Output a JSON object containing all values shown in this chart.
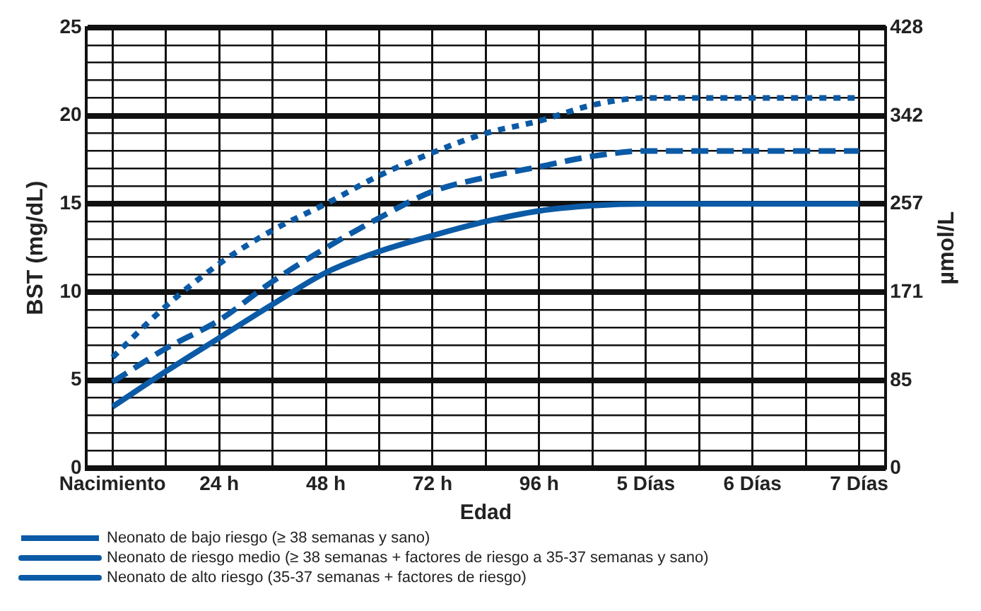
{
  "chart_data": {
    "type": "line",
    "xlabel": "Edad",
    "ylabel": "BST (mg/dL)",
    "y2label": "µmol/L",
    "categories": [
      "Nacimiento",
      null,
      "24 h",
      null,
      "48 h",
      null,
      "72 h",
      null,
      "96 h",
      null,
      "5 Días",
      null,
      "6 Días",
      null,
      "7 Días"
    ],
    "ylim": [
      0,
      25
    ],
    "yticks": [
      0,
      {
        "value": 1,
        "label": null
      },
      {
        "value": 2,
        "label": null
      },
      {
        "value": 3,
        "label": null
      },
      {
        "value": 4,
        "label": null
      },
      5,
      {
        "value": 6,
        "label": null
      },
      {
        "value": 7,
        "label": null
      },
      {
        "value": 8,
        "label": null
      },
      {
        "value": 9,
        "label": null
      },
      10,
      {
        "value": 11,
        "label": null
      },
      {
        "value": 12,
        "label": null
      },
      {
        "value": 13,
        "label": null
      },
      {
        "value": 14,
        "label": null
      },
      15,
      {
        "value": 16,
        "label": null
      },
      {
        "value": 17,
        "label": null
      },
      {
        "value": 18,
        "label": null
      },
      {
        "value": 19,
        "label": null
      },
      20,
      {
        "value": 21,
        "label": null
      },
      {
        "value": 22,
        "label": null
      },
      {
        "value": 23,
        "label": null
      },
      {
        "value": 24,
        "label": null
      },
      25
    ],
    "y2lim": [
      0,
      428
    ],
    "y2ticks": [
      0,
      85,
      171,
      257,
      342,
      428
    ],
    "grid": true,
    "legend": "bottom",
    "marker": "none",
    "series": [
      {
        "name": "Neonato de bajo riesgo (≥ 38 semanas y sano)",
        "color": "#0b5aa6",
        "line_style": "dotted",
        "values": [
          6.3,
          9.2,
          11.6,
          13.5,
          15.0,
          16.6,
          17.9,
          19.0,
          19.7,
          20.6,
          21,
          21,
          21,
          21,
          21
        ]
      },
      {
        "name": "Neonato de riesgo medio (≥ 38 semanas + factores de riesgo a 35-37 semanas y sano)",
        "color": "#0b5aa6",
        "line_style": "dashed",
        "values": [
          4.9,
          6.8,
          8.4,
          10.6,
          12.5,
          14.2,
          15.7,
          16.5,
          17.1,
          17.7,
          18,
          18,
          18,
          18,
          18
        ]
      },
      {
        "name": "Neonato de alto riesgo (35-37 semanas + factores de riesgo)",
        "color": "#0b5aa6",
        "line_style": "solid",
        "values": [
          3.5,
          5.5,
          7.4,
          9.3,
          11.1,
          12.3,
          13.2,
          14.0,
          14.6,
          14.9,
          15,
          15,
          15,
          15,
          15
        ]
      }
    ]
  }
}
